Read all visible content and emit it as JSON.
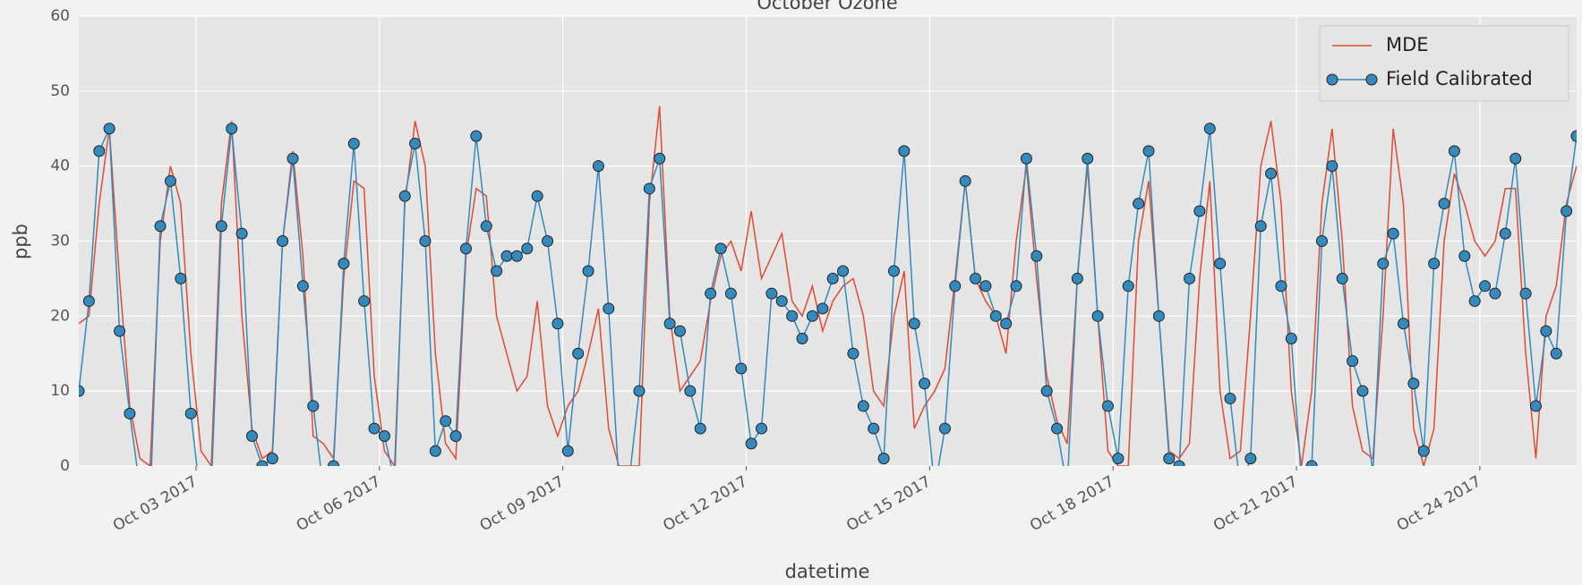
{
  "chart_data": {
    "type": "line",
    "title": "October Ozone",
    "xlabel": "datetime",
    "ylabel": "ppb",
    "legend": "upper right",
    "grid": true,
    "xlim": [
      "2017-10-01T02:00",
      "2017-10-25T14:00"
    ],
    "xticks": [
      {
        "value": "2017-10-03T00:00",
        "label": "Oct 03 2017"
      },
      {
        "value": "2017-10-06T00:00",
        "label": "Oct 06 2017"
      },
      {
        "value": "2017-10-09T00:00",
        "label": "Oct 09 2017"
      },
      {
        "value": "2017-10-12T00:00",
        "label": "Oct 12 2017"
      },
      {
        "value": "2017-10-15T00:00",
        "label": "Oct 15 2017"
      },
      {
        "value": "2017-10-18T00:00",
        "label": "Oct 18 2017"
      },
      {
        "value": "2017-10-21T00:00",
        "label": "Oct 21 2017"
      },
      {
        "value": "2017-10-24T00:00",
        "label": "Oct 24 2017"
      }
    ],
    "ylim": [
      0,
      60
    ],
    "yticks": [
      0,
      10,
      20,
      30,
      40,
      50,
      60
    ],
    "x": [
      "2017-10-01T02:00",
      "2017-10-01T06:00",
      "2017-10-01T10:00",
      "2017-10-01T14:00",
      "2017-10-01T18:00",
      "2017-10-01T22:00",
      "2017-10-02T02:00",
      "2017-10-02T06:00",
      "2017-10-02T10:00",
      "2017-10-02T14:00",
      "2017-10-02T18:00",
      "2017-10-02T22:00",
      "2017-10-03T02:00",
      "2017-10-03T06:00",
      "2017-10-03T10:00",
      "2017-10-03T14:00",
      "2017-10-03T18:00",
      "2017-10-03T22:00",
      "2017-10-04T02:00",
      "2017-10-04T06:00",
      "2017-10-04T10:00",
      "2017-10-04T14:00",
      "2017-10-04T18:00",
      "2017-10-04T22:00",
      "2017-10-05T02:00",
      "2017-10-05T06:00",
      "2017-10-05T10:00",
      "2017-10-05T14:00",
      "2017-10-05T18:00",
      "2017-10-05T22:00",
      "2017-10-06T02:00",
      "2017-10-06T06:00",
      "2017-10-06T10:00",
      "2017-10-06T14:00",
      "2017-10-06T18:00",
      "2017-10-06T22:00",
      "2017-10-07T02:00",
      "2017-10-07T06:00",
      "2017-10-07T10:00",
      "2017-10-07T14:00",
      "2017-10-07T18:00",
      "2017-10-07T22:00",
      "2017-10-08T02:00",
      "2017-10-08T06:00",
      "2017-10-08T10:00",
      "2017-10-08T14:00",
      "2017-10-08T18:00",
      "2017-10-08T22:00",
      "2017-10-09T02:00",
      "2017-10-09T06:00",
      "2017-10-09T10:00",
      "2017-10-09T14:00",
      "2017-10-09T18:00",
      "2017-10-09T22:00",
      "2017-10-10T02:00",
      "2017-10-10T06:00",
      "2017-10-10T10:00",
      "2017-10-10T14:00",
      "2017-10-10T18:00",
      "2017-10-10T22:00",
      "2017-10-11T02:00",
      "2017-10-11T06:00",
      "2017-10-11T10:00",
      "2017-10-11T14:00",
      "2017-10-11T18:00",
      "2017-10-11T22:00",
      "2017-10-12T02:00",
      "2017-10-12T06:00",
      "2017-10-12T10:00",
      "2017-10-12T14:00",
      "2017-10-12T18:00",
      "2017-10-12T22:00",
      "2017-10-13T02:00",
      "2017-10-13T06:00",
      "2017-10-13T10:00",
      "2017-10-13T14:00",
      "2017-10-13T18:00",
      "2017-10-13T22:00",
      "2017-10-14T02:00",
      "2017-10-14T06:00",
      "2017-10-14T10:00",
      "2017-10-14T14:00",
      "2017-10-14T18:00",
      "2017-10-14T22:00",
      "2017-10-15T02:00",
      "2017-10-15T06:00",
      "2017-10-15T10:00",
      "2017-10-15T14:00",
      "2017-10-15T18:00",
      "2017-10-15T22:00",
      "2017-10-16T02:00",
      "2017-10-16T06:00",
      "2017-10-16T10:00",
      "2017-10-16T14:00",
      "2017-10-16T18:00",
      "2017-10-16T22:00",
      "2017-10-17T02:00",
      "2017-10-17T06:00",
      "2017-10-17T10:00",
      "2017-10-17T14:00",
      "2017-10-17T18:00",
      "2017-10-17T22:00",
      "2017-10-18T02:00",
      "2017-10-18T06:00",
      "2017-10-18T10:00",
      "2017-10-18T14:00",
      "2017-10-18T18:00",
      "2017-10-18T22:00",
      "2017-10-19T02:00",
      "2017-10-19T06:00",
      "2017-10-19T10:00",
      "2017-10-19T14:00",
      "2017-10-19T18:00",
      "2017-10-19T22:00",
      "2017-10-20T02:00",
      "2017-10-20T06:00",
      "2017-10-20T10:00",
      "2017-10-20T14:00",
      "2017-10-20T18:00",
      "2017-10-20T22:00",
      "2017-10-21T02:00",
      "2017-10-21T06:00",
      "2017-10-21T10:00",
      "2017-10-21T14:00",
      "2017-10-21T18:00",
      "2017-10-21T22:00",
      "2017-10-22T02:00",
      "2017-10-22T06:00",
      "2017-10-22T10:00",
      "2017-10-22T14:00",
      "2017-10-22T18:00",
      "2017-10-22T22:00",
      "2017-10-23T02:00",
      "2017-10-23T06:00",
      "2017-10-23T10:00",
      "2017-10-23T14:00",
      "2017-10-23T18:00",
      "2017-10-23T22:00",
      "2017-10-24T02:00",
      "2017-10-24T06:00",
      "2017-10-24T10:00",
      "2017-10-24T14:00",
      "2017-10-24T18:00",
      "2017-10-24T22:00",
      "2017-10-25T02:00",
      "2017-10-25T06:00",
      "2017-10-25T10:00",
      "2017-10-25T14:00"
    ],
    "series": [
      {
        "name": "MDE",
        "color": "#e24a33",
        "marker": false,
        "values": [
          19,
          20,
          35,
          45,
          25,
          8,
          1,
          0,
          30,
          40,
          35,
          15,
          2,
          0,
          35,
          46,
          20,
          5,
          1,
          2,
          30,
          42,
          28,
          4,
          3,
          1,
          25,
          38,
          37,
          12,
          2,
          0,
          35,
          46,
          40,
          15,
          3,
          1,
          28,
          37,
          36,
          20,
          15,
          10,
          12,
          22,
          8,
          4,
          8,
          10,
          15,
          21,
          5,
          0,
          0,
          0,
          35,
          48,
          20,
          10,
          12,
          14,
          22,
          28,
          30,
          26,
          34,
          25,
          28,
          31,
          22,
          20,
          24,
          18,
          22,
          24,
          25,
          20,
          10,
          8,
          20,
          26,
          5,
          8,
          10,
          13,
          25,
          38,
          25,
          22,
          20,
          15,
          30,
          40,
          25,
          12,
          6,
          3,
          25,
          40,
          20,
          2,
          0,
          0,
          30,
          38,
          20,
          2,
          1,
          3,
          25,
          38,
          10,
          1,
          2,
          20,
          40,
          46,
          35,
          10,
          0,
          10,
          35,
          45,
          30,
          8,
          2,
          1,
          20,
          45,
          35,
          5,
          0,
          5,
          30,
          39,
          35,
          30,
          28,
          30,
          37,
          37,
          15,
          1,
          20,
          24,
          35,
          40
        ]
      },
      {
        "name": "Field Calibrated",
        "color": "#348abd",
        "marker": true,
        "values": [
          10,
          22,
          42,
          45,
          18,
          7,
          -3,
          -5,
          32,
          38,
          25,
          7,
          -5,
          -3,
          32,
          45,
          31,
          4,
          0,
          1,
          30,
          41,
          24,
          8,
          -3,
          0,
          27,
          43,
          22,
          5,
          4,
          -2,
          36,
          43,
          30,
          2,
          6,
          4,
          29,
          44,
          32,
          26,
          28,
          28,
          29,
          36,
          30,
          19,
          2,
          15,
          26,
          40,
          21,
          -2,
          -2,
          10,
          37,
          41,
          19,
          18,
          10,
          5,
          23,
          29,
          23,
          13,
          3,
          5,
          23,
          22,
          20,
          17,
          20,
          21,
          25,
          26,
          15,
          8,
          5,
          1,
          26,
          42,
          19,
          11,
          -3,
          5,
          24,
          38,
          25,
          24,
          20,
          19,
          24,
          41,
          28,
          10,
          5,
          -3,
          25,
          41,
          20,
          8,
          1,
          24,
          35,
          42,
          20,
          1,
          0,
          25,
          34,
          45,
          27,
          9,
          -3,
          1,
          32,
          39,
          24,
          17,
          -2,
          0,
          30,
          40,
          25,
          14,
          10,
          -1,
          27,
          31,
          19,
          11,
          2,
          27,
          35,
          42,
          28,
          22,
          24,
          23,
          31,
          41,
          23,
          8,
          18,
          15,
          34,
          44
        ]
      }
    ]
  }
}
